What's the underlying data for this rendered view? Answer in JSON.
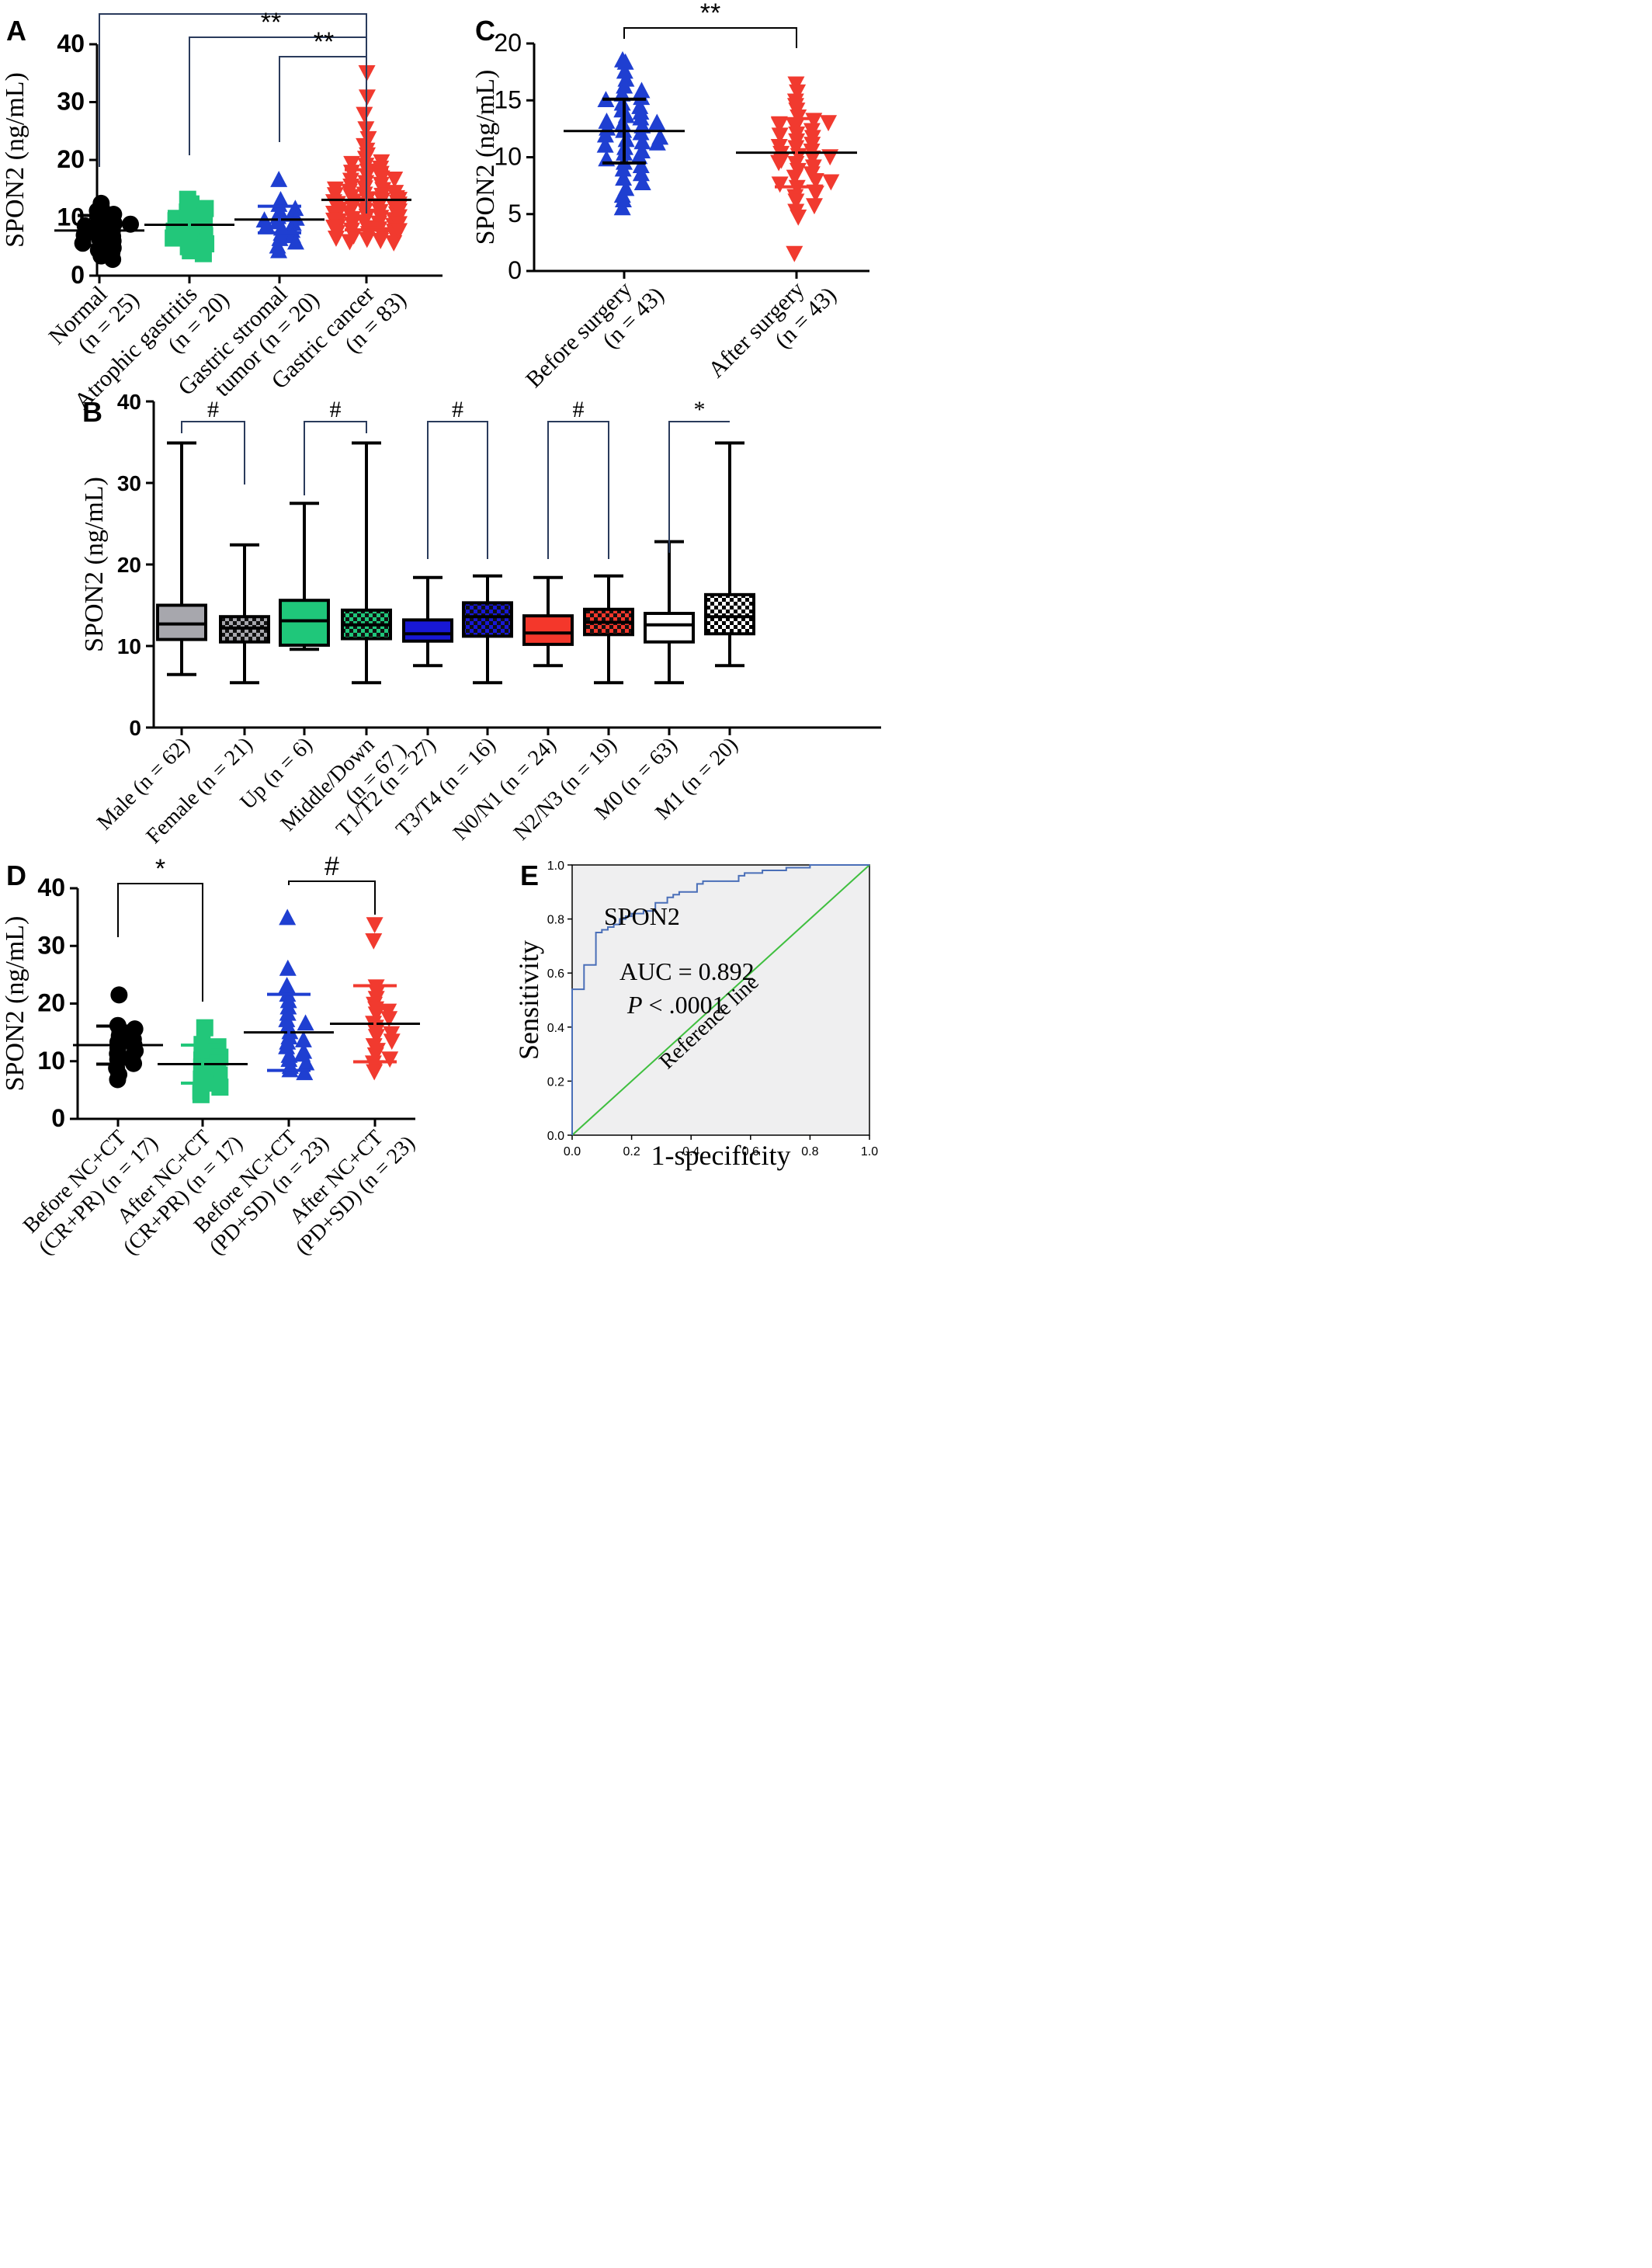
{
  "chart_data": [
    {
      "panel": "A",
      "type": "scatter",
      "ylabel": "SPON2 (ng/mL)",
      "ylim": [
        0,
        40
      ],
      "yticks": [
        "0",
        "10",
        "20",
        "30",
        "40"
      ],
      "categories": [
        [
          "Normal",
          "(n = 25)"
        ],
        [
          "Atrophic gastritis",
          "(n = 20)"
        ],
        [
          "Gastric stromal",
          "tumor (n = 20)"
        ],
        [
          "Gastric cancer",
          "(n = 83)"
        ]
      ],
      "colors": [
        "#000000",
        "#22c77a",
        "#1f3fd1",
        "#f13a2f"
      ],
      "markers": [
        "circle",
        "square",
        "triangle-up",
        "triangle-down"
      ],
      "means": [
        7.8,
        8.8,
        9.7,
        13.1
      ],
      "sd": [
        2.6,
        2.3,
        2.3,
        5.2
      ],
      "points": [
        [
          12.5,
          11.8,
          11.2,
          10.6,
          10.2,
          9.8,
          9.4,
          9.0,
          8.6,
          8.2,
          7.8,
          7.6,
          7.2,
          6.8,
          6.4,
          6.0,
          5.6,
          5.2,
          4.8,
          4.4,
          4.0,
          3.4,
          2.8,
          8.9,
          7.0
        ],
        [
          13.2,
          12.4,
          11.6,
          11.0,
          10.4,
          10.0,
          9.5,
          9.1,
          8.7,
          8.3,
          8.0,
          7.7,
          7.3,
          6.9,
          6.5,
          6.0,
          5.5,
          5.0,
          4.3,
          3.8
        ],
        [
          16.5,
          13.0,
          12.2,
          11.5,
          11.0,
          10.5,
          10.1,
          9.8,
          9.5,
          9.2,
          8.9,
          8.5,
          8.1,
          7.7,
          7.2,
          6.8,
          6.3,
          5.7,
          5.0,
          4.2
        ],
        [
          35.2,
          31.0,
          28.0,
          25.5,
          23.8,
          22.6,
          21.8,
          21.0,
          20.4,
          19.8,
          19.2,
          18.7,
          18.2,
          17.8,
          17.4,
          17.0,
          16.6,
          16.2,
          15.9,
          15.6,
          15.3,
          15.0,
          14.7,
          14.5,
          14.2,
          14.0,
          13.8,
          13.6,
          13.4,
          13.2,
          13.0,
          12.8,
          12.6,
          12.4,
          12.2,
          12.0,
          11.8,
          11.6,
          11.4,
          11.2,
          11.0,
          10.8,
          10.6,
          10.4,
          10.2,
          10.0,
          9.8,
          9.6,
          9.4,
          9.2,
          9.0,
          8.8,
          8.6,
          8.4,
          8.2,
          8.0,
          7.8,
          7.6,
          7.4,
          7.2,
          7.0,
          6.8,
          6.6,
          6.4,
          6.2,
          6.0,
          5.8,
          14.1,
          13.3,
          12.9,
          12.5,
          11.9,
          11.3,
          10.9,
          10.3,
          9.7,
          9.1,
          8.5,
          7.9,
          16.8,
          15.1,
          18.0,
          19.5
        ]
      ],
      "significance": [
        {
          "from": 0,
          "to": 3,
          "label": "**"
        },
        {
          "from": 1,
          "to": 3,
          "label": "**"
        },
        {
          "from": 2,
          "to": 3,
          "label": "**"
        }
      ]
    },
    {
      "panel": "C",
      "type": "scatter",
      "ylabel": "SPON2 (ng/mL)",
      "ylim": [
        0,
        20
      ],
      "yticks": [
        "0",
        "5",
        "10",
        "15",
        "20"
      ],
      "categories": [
        [
          "Before surgery",
          "(n = 43)"
        ],
        [
          "After surgery",
          "(n = 43)"
        ]
      ],
      "colors": [
        "#1f3fd1",
        "#f13a2f"
      ],
      "markers": [
        "triangle-up",
        "triangle-down"
      ],
      "means": [
        12.3,
        10.4
      ],
      "sd": [
        2.8,
        3.0
      ],
      "points": [
        [
          18.5,
          18.3,
          17.5,
          16.8,
          16.2,
          15.8,
          15.5,
          15.2,
          15.0,
          14.7,
          14.4,
          14.1,
          13.9,
          13.6,
          13.4,
          13.1,
          12.9,
          12.7,
          12.5,
          12.3,
          12.1,
          11.9,
          11.7,
          11.5,
          11.3,
          11.0,
          10.8,
          10.5,
          10.3,
          10.0,
          9.8,
          9.5,
          9.2,
          8.9,
          8.5,
          8.1,
          7.7,
          7.2,
          6.6,
          6.2,
          5.5,
          13.0,
          11.2
        ],
        [
          16.5,
          15.8,
          15.0,
          14.2,
          13.6,
          13.3,
          13.0,
          12.7,
          12.4,
          12.1,
          11.8,
          11.5,
          11.2,
          10.9,
          10.6,
          10.4,
          10.2,
          10.0,
          9.8,
          9.5,
          9.2,
          8.9,
          8.6,
          8.3,
          8.0,
          7.7,
          7.4,
          7.0,
          6.6,
          6.2,
          5.8,
          5.3,
          4.8,
          1.6,
          12.9,
          11.0,
          9.6,
          13.1,
          7.9,
          6.9,
          14.6,
          12.0,
          10.1
        ]
      ],
      "significance": [
        {
          "from": 0,
          "to": 1,
          "label": "**"
        }
      ]
    },
    {
      "panel": "B",
      "type": "boxplot",
      "ylabel": "SPON2 (ng/mL)",
      "ylim": [
        0,
        40
      ],
      "yticks": [
        "0",
        "10",
        "20",
        "30",
        "40"
      ],
      "categories": [
        [
          "Male (n = 62)"
        ],
        [
          "Female (n = 21)"
        ],
        [
          "Up (n = 6)"
        ],
        [
          "Middle/Down",
          "(n = 67 )"
        ],
        [
          "T1/T2 (n = 27)"
        ],
        [
          "T3/T4 (n = 16)"
        ],
        [
          "N0/N1 (n = 24)"
        ],
        [
          "N2/N3 (n = 19)"
        ],
        [
          "M0 (n = 63)"
        ],
        [
          "M1 (n = 20)"
        ]
      ],
      "colors": [
        "#a7a7ad",
        "#a7a7ad",
        "#1fc77a",
        "#1fc77a",
        "#1818d6",
        "#1818d6",
        "#f4372b",
        "#f4372b",
        "#ffffff",
        "#ffffff"
      ],
      "checkered": [
        false,
        true,
        false,
        true,
        false,
        true,
        false,
        true,
        false,
        true
      ],
      "boxes": [
        {
          "min": 6.5,
          "q1": 10.8,
          "median": 12.7,
          "q3": 15.0,
          "max": 34.9
        },
        {
          "min": 5.5,
          "q1": 10.5,
          "median": 12.2,
          "q3": 13.6,
          "max": 22.4
        },
        {
          "min": 9.6,
          "q1": 10.1,
          "median": 13.1,
          "q3": 15.6,
          "max": 27.5
        },
        {
          "min": 5.5,
          "q1": 10.9,
          "median": 12.6,
          "q3": 14.4,
          "max": 34.9
        },
        {
          "min": 7.6,
          "q1": 10.6,
          "median": 11.5,
          "q3": 13.2,
          "max": 18.4
        },
        {
          "min": 5.5,
          "q1": 11.2,
          "median": 13.6,
          "q3": 15.3,
          "max": 18.6
        },
        {
          "min": 7.6,
          "q1": 10.2,
          "median": 11.6,
          "q3": 13.7,
          "max": 18.4
        },
        {
          "min": 5.5,
          "q1": 11.4,
          "median": 12.9,
          "q3": 14.5,
          "max": 18.6
        },
        {
          "min": 5.5,
          "q1": 10.5,
          "median": 12.6,
          "q3": 14.0,
          "max": 22.8
        },
        {
          "min": 7.6,
          "q1": 11.5,
          "median": 13.6,
          "q3": 16.3,
          "max": 34.9
        }
      ],
      "significance": [
        {
          "from": 0,
          "to": 1,
          "label": "#"
        },
        {
          "from": 2,
          "to": 3,
          "label": "#"
        },
        {
          "from": 4,
          "to": 5,
          "label": "#"
        },
        {
          "from": 6,
          "to": 7,
          "label": "#"
        },
        {
          "from": 8,
          "to": 9,
          "label": "*"
        }
      ]
    },
    {
      "panel": "D",
      "type": "scatter",
      "ylabel": "SPON2 (ng/mL)",
      "ylim": [
        0,
        40
      ],
      "yticks": [
        "0",
        "10",
        "20",
        "30",
        "40"
      ],
      "categories": [
        [
          "Before NC+CT",
          "(CR+PR) (n = 17)"
        ],
        [
          "After NC+CT",
          "(CR+PR) (n = 17)"
        ],
        [
          "Before NC+CT",
          "(PD+SD) (n = 23)"
        ],
        [
          "After NC+CT",
          "(PD+SD) (n = 23)"
        ]
      ],
      "colors": [
        "#000000",
        "#22c77a",
        "#1f3fd1",
        "#f13a2f"
      ],
      "markers": [
        "circle",
        "square",
        "triangle-up",
        "triangle-down"
      ],
      "means": [
        12.8,
        9.5,
        15.0,
        16.5
      ],
      "sd": [
        3.3,
        3.3,
        6.6,
        6.6
      ],
      "points": [
        [
          21.5,
          16.2,
          15.6,
          15.0,
          14.4,
          13.8,
          13.3,
          12.8,
          12.3,
          11.8,
          11.3,
          10.8,
          10.3,
          9.6,
          8.8,
          7.7,
          6.8
        ],
        [
          15.8,
          12.9,
          12.5,
          12.0,
          11.6,
          11.2,
          10.7,
          10.2,
          9.6,
          9.0,
          8.3,
          7.6,
          6.9,
          6.2,
          5.5,
          4.8,
          4.2
        ],
        [
          34.8,
          26.0,
          23.0,
          21.5,
          20.4,
          19.3,
          18.2,
          17.1,
          16.0,
          15.0,
          14.1,
          13.2,
          12.4,
          11.6,
          10.9,
          10.2,
          9.6,
          9.0,
          8.4,
          7.9,
          13.6,
          11.1,
          16.5
        ],
        [
          33.8,
          31.0,
          23.0,
          22.0,
          21.0,
          20.0,
          19.2,
          18.3,
          17.5,
          16.7,
          16.0,
          15.2,
          14.4,
          13.6,
          12.8,
          12.0,
          11.2,
          10.5,
          9.8,
          9.0,
          8.3,
          14.9,
          18.8
        ]
      ],
      "significance": [
        {
          "from": 0,
          "to": 1,
          "label": "*"
        },
        {
          "from": 2,
          "to": 3,
          "label": "#"
        }
      ]
    },
    {
      "panel": "E",
      "type": "line",
      "xlabel": "1-specificity",
      "ylabel": "Sensitivity",
      "xlim": [
        0,
        1
      ],
      "ylim": [
        0,
        1
      ],
      "xticks": [
        "0.0",
        "0.2",
        "0.4",
        "0.6",
        "0.8",
        "1.0"
      ],
      "yticks": [
        "0.0",
        "0.2",
        "0.4",
        "0.6",
        "0.8",
        "1.0"
      ],
      "series_label": "SPON2",
      "series_color": "#4a6fb8",
      "reference_label": "Reference line",
      "reference_color": "#3fbf3f",
      "auc_text": "AUC = 0.892",
      "p_prefix": "P",
      "p_text": " < .0001",
      "roc": [
        [
          0.0,
          0.0
        ],
        [
          0.0,
          0.54
        ],
        [
          0.04,
          0.54
        ],
        [
          0.04,
          0.63
        ],
        [
          0.08,
          0.63
        ],
        [
          0.08,
          0.75
        ],
        [
          0.1,
          0.75
        ],
        [
          0.1,
          0.76
        ],
        [
          0.12,
          0.76
        ],
        [
          0.12,
          0.77
        ],
        [
          0.14,
          0.77
        ],
        [
          0.14,
          0.78
        ],
        [
          0.16,
          0.78
        ],
        [
          0.16,
          0.8
        ],
        [
          0.18,
          0.8
        ],
        [
          0.18,
          0.81
        ],
        [
          0.2,
          0.81
        ],
        [
          0.2,
          0.82
        ],
        [
          0.24,
          0.82
        ],
        [
          0.24,
          0.83
        ],
        [
          0.28,
          0.83
        ],
        [
          0.28,
          0.86
        ],
        [
          0.32,
          0.86
        ],
        [
          0.32,
          0.88
        ],
        [
          0.34,
          0.88
        ],
        [
          0.34,
          0.89
        ],
        [
          0.36,
          0.89
        ],
        [
          0.36,
          0.9
        ],
        [
          0.42,
          0.9
        ],
        [
          0.42,
          0.93
        ],
        [
          0.44,
          0.93
        ],
        [
          0.44,
          0.94
        ],
        [
          0.56,
          0.94
        ],
        [
          0.56,
          0.96
        ],
        [
          0.58,
          0.96
        ],
        [
          0.58,
          0.97
        ],
        [
          0.64,
          0.97
        ],
        [
          0.64,
          0.98
        ],
        [
          0.72,
          0.98
        ],
        [
          0.72,
          0.99
        ],
        [
          0.8,
          0.99
        ],
        [
          0.8,
          1.0
        ],
        [
          1.0,
          1.0
        ]
      ]
    }
  ],
  "panel_letters": [
    "A",
    "C",
    "B",
    "D",
    "E"
  ]
}
